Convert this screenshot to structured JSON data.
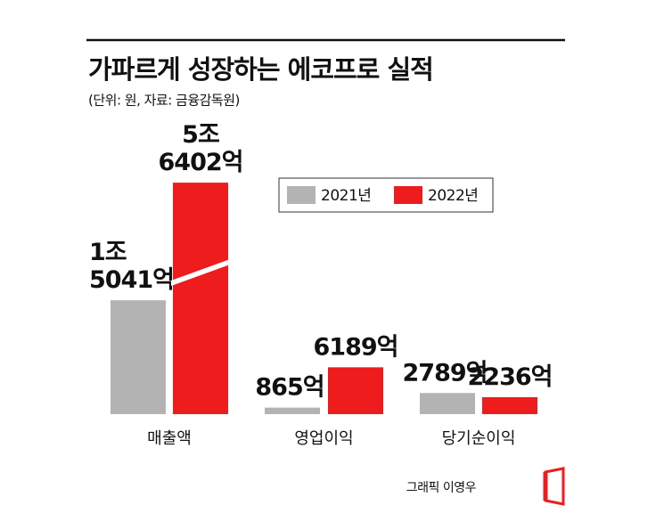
{
  "chart_data": {
    "type": "bar",
    "title": "가파르게 성장하는 에코프로 실적",
    "subtitle": "(단위: 원, 자료: 금융감독원)",
    "categories": [
      "매출액",
      "영업이익",
      "당기순이익"
    ],
    "series": [
      {
        "name": "2021년",
        "color": "#b3b3b3",
        "values": [
          15041,
          865,
          2789
        ],
        "value_labels": [
          "1조\n5041억",
          "865억",
          "2789억"
        ],
        "label_color": "#111111"
      },
      {
        "name": "2022년",
        "color": "#ee1c1c",
        "values": [
          56402,
          6189,
          2236
        ],
        "value_labels": [
          "5조\n6402억",
          "6189억",
          "2236억"
        ],
        "label_color": "#ee1c1c"
      }
    ],
    "axis_break": 20000,
    "credit": "그래픽 이영우"
  }
}
